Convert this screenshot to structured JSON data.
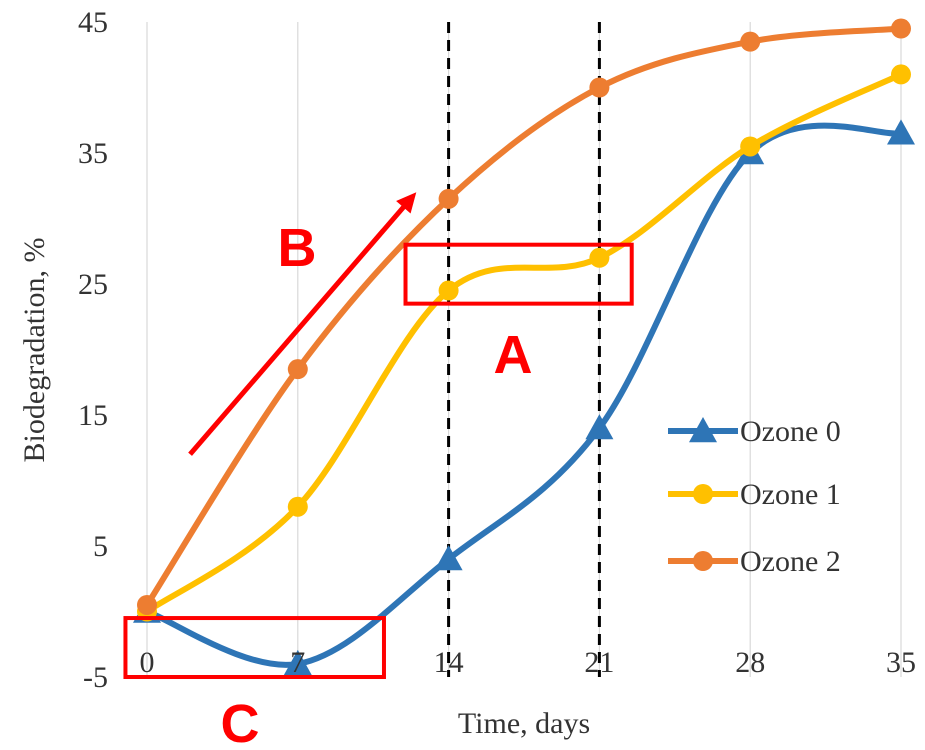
{
  "chart_data": {
    "type": "line",
    "smooth": true,
    "xlabel": "Time, days",
    "ylabel": "Biodegradation, %",
    "xlim": [
      0,
      35
    ],
    "ylim": [
      -5,
      45
    ],
    "x_ticks": [
      0,
      7,
      14,
      21,
      28,
      35
    ],
    "y_ticks": [
      -5,
      5,
      15,
      25,
      35,
      45
    ],
    "grid": "vertical",
    "legend_position": "bottom-right",
    "x": [
      0,
      7,
      14,
      21,
      28,
      35
    ],
    "series": [
      {
        "name": "Ozone 0",
        "values": [
          0,
          -4,
          4,
          14,
          35,
          36.5
        ],
        "color": "#2E75B6",
        "marker": "triangle"
      },
      {
        "name": "Ozone 1",
        "values": [
          0,
          8,
          24.5,
          27,
          35.5,
          41
        ],
        "color": "#FFC000",
        "marker": "circle"
      },
      {
        "name": "Ozone 2",
        "values": [
          0.5,
          18.5,
          31.5,
          40,
          43.5,
          44.5
        ],
        "color": "#ED7D31",
        "marker": "circle"
      }
    ],
    "reference_lines": [
      {
        "axis": "x",
        "value": 14,
        "style": "dashed",
        "color": "#000000"
      },
      {
        "axis": "x",
        "value": 21,
        "style": "dashed",
        "color": "#000000"
      }
    ],
    "annotations": [
      {
        "label": "A",
        "color": "#FF0000",
        "kind": "box",
        "x_range": [
          12,
          22.5
        ],
        "y_range": [
          23.5,
          28
        ]
      },
      {
        "label": "B",
        "color": "#FF0000",
        "kind": "arrow",
        "from": [
          2,
          12
        ],
        "to": [
          12.5,
          32
        ]
      },
      {
        "label": "C",
        "color": "#FF0000",
        "kind": "box",
        "x_range": [
          -1,
          11
        ],
        "y_range": [
          -5,
          -0.5
        ]
      }
    ]
  }
}
